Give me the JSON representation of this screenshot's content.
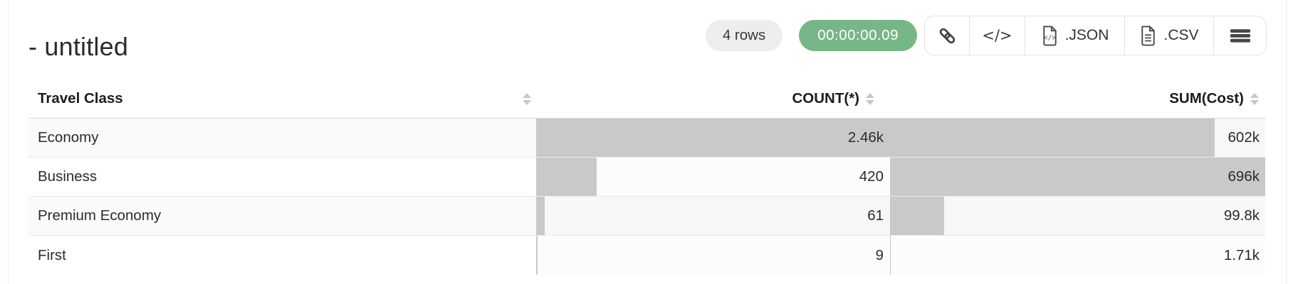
{
  "page": {
    "title": "- untitled",
    "colors": {
      "accent_green": "#77b787",
      "bar_color": "#c9c9c9"
    }
  },
  "toolbar": {
    "row_count": "4 rows",
    "query_time": "00:00:00.09",
    "embed_glyph": "</>",
    "json_label": ".JSON",
    "csv_label": ".CSV",
    "icons": [
      "link-icon",
      "code-icon",
      "file-code-icon",
      "file-lines-icon",
      "hamburger-menu-icon",
      "sort-icon"
    ]
  },
  "table": {
    "columns": [
      {
        "label": "Travel Class",
        "align": "left",
        "sortable": true
      },
      {
        "label": "COUNT(*)",
        "align": "right",
        "sortable": true
      },
      {
        "label": "SUM(Cost)",
        "align": "right",
        "sortable": true
      }
    ],
    "rows": [
      {
        "travel_class": "Economy",
        "count_display": "2.46k",
        "count_value": 2460,
        "sum_display": "602k",
        "sum_value": 602000
      },
      {
        "travel_class": "Business",
        "count_display": "420",
        "count_value": 420,
        "sum_display": "696k",
        "sum_value": 696000
      },
      {
        "travel_class": "Premium Economy",
        "count_display": "61",
        "count_value": 61,
        "sum_display": "99.8k",
        "sum_value": 99800
      },
      {
        "travel_class": "First",
        "count_display": "9",
        "count_value": 9,
        "sum_display": "1.71k",
        "sum_value": 1710
      }
    ]
  },
  "chart_data": {
    "type": "table",
    "title": "- untitled",
    "columns": [
      "Travel Class",
      "COUNT(*)",
      "SUM(Cost)"
    ],
    "rows": [
      [
        "Economy",
        2460,
        602000
      ],
      [
        "Business",
        420,
        696000
      ],
      [
        "Premium Economy",
        61,
        99800
      ],
      [
        "First",
        9,
        1710
      ]
    ],
    "display_values": [
      [
        "Economy",
        "2.46k",
        "602k"
      ],
      [
        "Business",
        "420",
        "696k"
      ],
      [
        "Premium Economy",
        "61",
        "99.8k"
      ],
      [
        "First",
        "9",
        "1.71k"
      ]
    ],
    "layout_hints": "numeric cells contain gray in-cell bars scaled to each column maximum"
  }
}
